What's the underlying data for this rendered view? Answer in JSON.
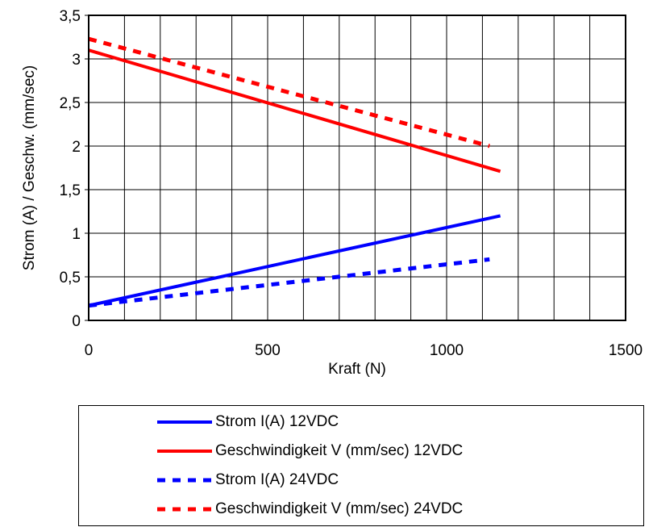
{
  "chart_data": {
    "type": "line",
    "title": "",
    "xlabel": "Kraft (N)",
    "ylabel": "Strom (A) / Geschw. (mm/sec)",
    "xlim": [
      0,
      1500
    ],
    "ylim": [
      0,
      3.5
    ],
    "xticks": [
      0,
      500,
      1000,
      1500
    ],
    "xtick_labels": [
      "0",
      "500",
      "1000",
      "1500"
    ],
    "yticks": [
      0,
      0.5,
      1,
      1.5,
      2,
      2.5,
      3,
      3.5
    ],
    "ytick_labels": [
      "0",
      "0,5",
      "1",
      "1,5",
      "2",
      "2,5",
      "3",
      "3,5"
    ],
    "grid": true,
    "legend_position": "bottom",
    "series": [
      {
        "name": "Strom I(A) 12VDC",
        "color": "#0000ff",
        "style": "solid",
        "x": [
          0,
          1150
        ],
        "y": [
          0.17,
          1.2
        ]
      },
      {
        "name": "Geschwindigkeit V (mm/sec) 12VDC",
        "color": "#ff0000",
        "style": "solid",
        "x": [
          0,
          1150
        ],
        "y": [
          3.1,
          1.71
        ]
      },
      {
        "name": "Strom I(A) 24VDC",
        "color": "#0000ff",
        "style": "dashed",
        "x": [
          0,
          1120
        ],
        "y": [
          0.17,
          0.7
        ]
      },
      {
        "name": "Geschwindigkeit V (mm/sec) 24VDC",
        "color": "#ff0000",
        "style": "dashed",
        "x": [
          0,
          1120
        ],
        "y": [
          3.23,
          2.0
        ]
      }
    ]
  }
}
